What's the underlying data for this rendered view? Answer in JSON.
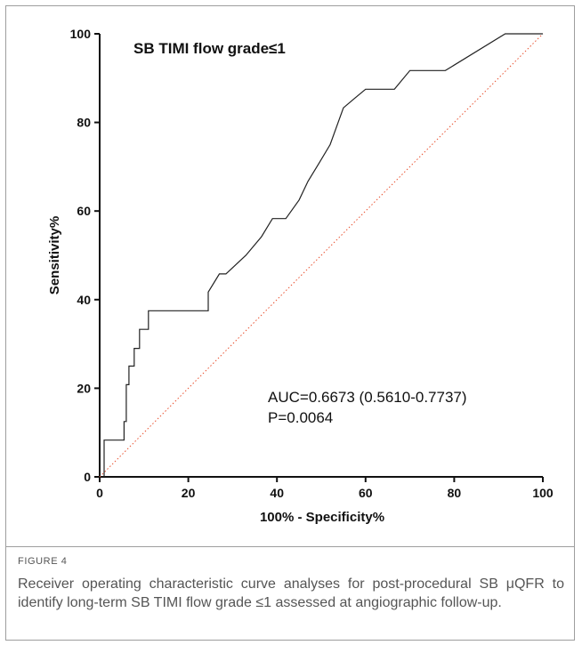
{
  "chart_data": {
    "type": "line",
    "title": "SB TIMI flow grade≤1",
    "xlabel": "100% - Specificity%",
    "ylabel": "Sensitivity%",
    "xlim": [
      0,
      100
    ],
    "ylim": [
      0,
      100
    ],
    "xticks": [
      "0",
      "20",
      "40",
      "60",
      "80",
      "100"
    ],
    "yticks": [
      "0",
      "20",
      "40",
      "60",
      "80",
      "100"
    ],
    "grid": false,
    "annotations": [
      "AUC=0.6673 (0.5610-0.7737)",
      "P=0.0064"
    ],
    "reference_line": {
      "x": [
        0,
        100
      ],
      "y": [
        0,
        100
      ],
      "color": "#e8502f",
      "style": "dotted"
    },
    "series": [
      {
        "color": "#222222",
        "x": [
          1,
          1,
          5.5,
          5.5,
          6,
          6,
          6.6,
          6.6,
          7,
          7,
          7.8,
          7.8,
          9,
          9,
          10,
          10,
          11,
          11,
          12.5,
          24.5,
          24.5,
          27,
          27,
          28.5,
          33,
          36.5,
          39,
          42,
          45,
          47,
          49.5,
          52,
          55,
          57.5,
          60,
          66.5,
          70,
          78,
          91.5,
          100
        ],
        "y": [
          0,
          8.3,
          8.3,
          12.5,
          12.5,
          20.8,
          20.8,
          25,
          25,
          25,
          25,
          29,
          29,
          33.3,
          33.3,
          33.3,
          33.3,
          37.5,
          37.5,
          37.5,
          41.7,
          45.8,
          45.8,
          45.8,
          50,
          54.2,
          58.3,
          58.3,
          62.5,
          66.7,
          70.8,
          75,
          83.3,
          85.4,
          87.5,
          87.5,
          91.7,
          91.7,
          100,
          100
        ]
      }
    ]
  },
  "caption": {
    "label": "FIGURE 4",
    "text": "Receiver operating characteristic curve analyses for post-procedural SB μQFR to identify long-term SB TIMI flow grade ≤1 assessed at angiographic follow-up."
  }
}
